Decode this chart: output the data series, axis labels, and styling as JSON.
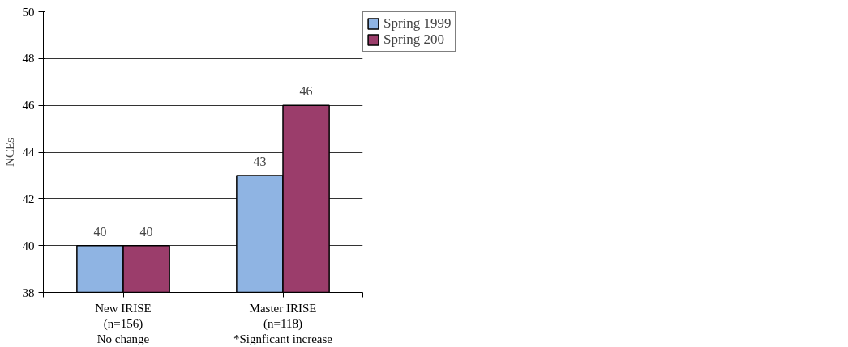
{
  "chart_data": {
    "type": "bar",
    "ylabel": "NCEs",
    "categories": [
      "New IRISE\n(n=156)\nNo change",
      "Master IRISE\n(n=118)\n*Signficant increase"
    ],
    "series": [
      {
        "name": "Spring 1999",
        "color": "#8fb4e3",
        "values": [
          40,
          43
        ]
      },
      {
        "name": "Spring 200",
        "color": "#9b3d6b",
        "values": [
          40,
          46
        ]
      }
    ],
    "ylim": [
      38,
      50
    ],
    "yticks": [
      38,
      40,
      42,
      44,
      46,
      48,
      50
    ],
    "grid": "y",
    "legend": "top right",
    "data_labels": true
  }
}
